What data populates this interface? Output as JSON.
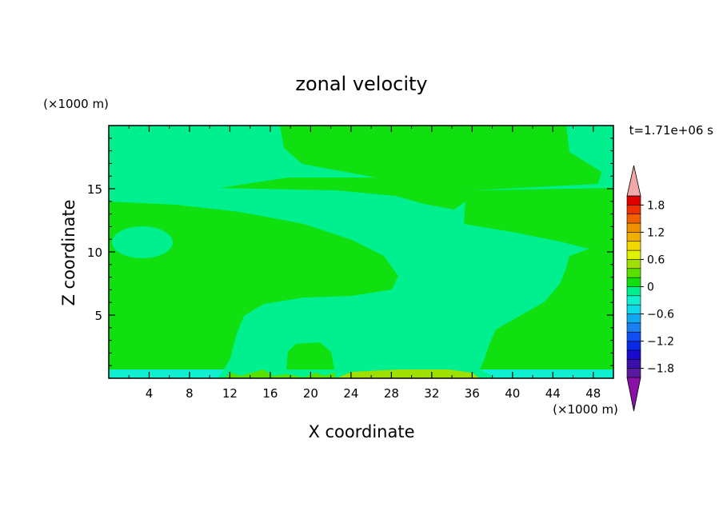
{
  "chart_data": {
    "type": "heatmap",
    "title": "zonal velocity",
    "xlabel": "X coordinate",
    "ylabel": "Z coordinate",
    "x_unit": "(×1000 m)",
    "y_unit": "(×1000 m)",
    "time_label": "t=1.71e+06 s",
    "xlim": [
      0,
      50
    ],
    "ylim": [
      0,
      20
    ],
    "xticks": [
      4,
      8,
      12,
      16,
      20,
      24,
      28,
      32,
      36,
      40,
      44,
      48
    ],
    "yticks": [
      5,
      10,
      15
    ],
    "colorbar": {
      "levels": [
        -2.0,
        -1.8,
        -1.6,
        -1.4,
        -1.2,
        -1.0,
        -0.8,
        -0.6,
        -0.4,
        -0.2,
        0.0,
        0.2,
        0.4,
        0.6,
        0.8,
        1.0,
        1.2,
        1.4,
        1.6,
        1.8,
        2.0
      ],
      "colors": [
        "#5a1aa0",
        "#3a10a8",
        "#1a0ad0",
        "#0a28e8",
        "#1050f0",
        "#1a80f0",
        "#10a8f0",
        "#10d8e8",
        "#10f0d0",
        "#00f090",
        "#10e010",
        "#5ae000",
        "#a0e000",
        "#e0f000",
        "#f0d800",
        "#f0b000",
        "#f09000",
        "#f06000",
        "#f03000",
        "#e00000"
      ],
      "tick_labels": [
        "1.8",
        "1.2",
        "0.6",
        "0",
        "−0.6",
        "−1.2",
        "−1.8"
      ],
      "tick_values": [
        1.8,
        1.2,
        0.6,
        0.0,
        -0.6,
        -1.2,
        -1.8
      ],
      "over_color": "#f0a8a8",
      "under_color": "#8a10a8"
    },
    "field_colors": {
      "positive_small": "#10e010",
      "near_zero": "#00f090",
      "negative_small": "#10f0d0",
      "positive_moderate": "#a0e000"
    }
  }
}
